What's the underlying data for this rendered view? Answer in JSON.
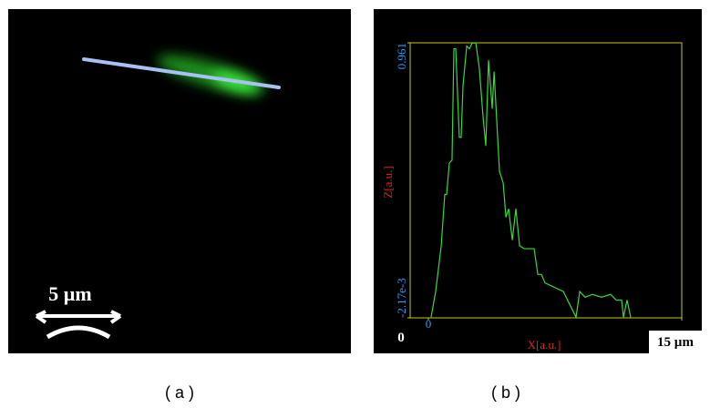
{
  "chart_data": {
    "type": "line",
    "x_label": "X[a.u.]",
    "y_label": "Z[a.u.]",
    "x": [
      0.16,
      0.43,
      0.76,
      0.97,
      1.08,
      1.24,
      1.4,
      1.51,
      1.62,
      1.83,
      1.94,
      2.05,
      2.27,
      2.43,
      2.59,
      2.81,
      3.02,
      3.24,
      3.4,
      3.56,
      3.78,
      3.89,
      4.1,
      4.21,
      4.43,
      4.59,
      4.75,
      4.97,
      5.18,
      5.4,
      5.67,
      6.26,
      6.48,
      6.69,
      6.91,
      7.99,
      8.74,
      8.96,
      9.28,
      9.71,
      10.25,
      10.79,
      11.12,
      11.44,
      11.55,
      11.76,
      11.98
    ],
    "values": [
      0.0,
      0.09,
      0.25,
      0.43,
      0.43,
      0.54,
      0.55,
      0.94,
      0.94,
      0.63,
      0.63,
      0.81,
      0.95,
      0.94,
      0.96,
      0.96,
      0.87,
      0.7,
      0.6,
      0.9,
      0.73,
      0.86,
      0.63,
      0.51,
      0.47,
      0.35,
      0.38,
      0.27,
      0.38,
      0.25,
      0.24,
      0.24,
      0.15,
      0.15,
      0.12,
      0.09,
      0.0,
      0.09,
      0.07,
      0.08,
      0.07,
      0.08,
      0.06,
      0.06,
      0.0,
      0.06,
      0.0
    ],
    "color": "#39d839",
    "xlim": [
      -1.08,
      15
    ],
    "xticks": [
      0,
      {
        "value": 15,
        "label": "15 µm"
      }
    ],
    "ylim": [
      -0.00217,
      0.961
    ],
    "yticks": [
      {
        "value": -0.00217,
        "label": "-2.17e-3"
      },
      0.961
    ]
  },
  "figure": {
    "panel_a": {
      "scale_label": "5 µm",
      "caption": "( a )"
    },
    "panel_b": {
      "corner_label": "0",
      "caption": "( b )"
    }
  }
}
